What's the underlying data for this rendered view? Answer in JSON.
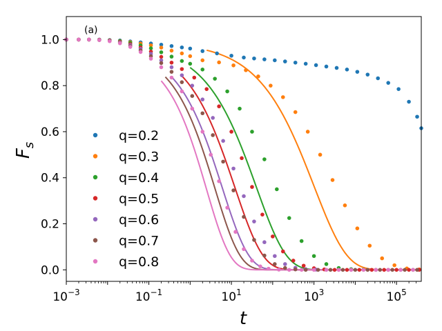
{
  "chart_data": {
    "type": "scatter",
    "title": "",
    "panel_label": "(a)",
    "xlabel": "t",
    "ylabel_main": "F",
    "ylabel_sub": "s",
    "xscale": "log",
    "xlim_log10": [
      -3,
      5.6
    ],
    "ylim": [
      -0.05,
      1.1
    ],
    "x_ticks": [
      {
        "base": "10",
        "exp": "−3",
        "log10": -3
      },
      {
        "base": "10",
        "exp": "−1",
        "log10": -1
      },
      {
        "base": "10",
        "exp": "1",
        "log10": 1
      },
      {
        "base": "10",
        "exp": "3",
        "log10": 3
      },
      {
        "base": "10",
        "exp": "5",
        "log10": 5
      }
    ],
    "y_ticks": [
      {
        "label": "0.0",
        "value": 0.0
      },
      {
        "label": "0.2",
        "value": 0.2
      },
      {
        "label": "0.4",
        "value": 0.4
      },
      {
        "label": "0.6",
        "value": 0.6
      },
      {
        "label": "0.8",
        "value": 0.8
      },
      {
        "label": "1.0",
        "value": 1.0
      }
    ],
    "legend_position": "center-left",
    "series": [
      {
        "name": "q=0.2",
        "color": "#1f77b4",
        "fit": false,
        "points": [
          [
            -3,
            1.0
          ],
          [
            -2.7,
            1.0
          ],
          [
            -2.45,
            1.0
          ],
          [
            -2.2,
            1.0
          ],
          [
            -1.95,
            0.998
          ],
          [
            -1.7,
            0.996
          ],
          [
            -1.45,
            0.992
          ],
          [
            -1.2,
            0.988
          ],
          [
            -0.95,
            0.983
          ],
          [
            -0.7,
            0.978
          ],
          [
            -0.45,
            0.972
          ],
          [
            -0.2,
            0.966
          ],
          [
            0.0,
            0.961
          ],
          [
            0.3,
            0.95
          ],
          [
            0.65,
            0.94
          ],
          [
            1.0,
            0.93
          ],
          [
            1.3,
            0.922
          ],
          [
            1.55,
            0.918
          ],
          [
            1.8,
            0.914
          ],
          [
            2.05,
            0.91
          ],
          [
            2.3,
            0.905
          ],
          [
            2.55,
            0.9
          ],
          [
            2.8,
            0.895
          ],
          [
            3.05,
            0.889
          ],
          [
            3.3,
            0.883
          ],
          [
            3.55,
            0.877
          ],
          [
            3.8,
            0.87
          ],
          [
            4.05,
            0.86
          ],
          [
            4.3,
            0.848
          ],
          [
            4.55,
            0.832
          ],
          [
            4.8,
            0.812
          ],
          [
            5.05,
            0.785
          ],
          [
            5.3,
            0.73
          ],
          [
            5.5,
            0.665
          ],
          [
            5.6,
            0.615
          ]
        ]
      },
      {
        "name": "q=0.3",
        "color": "#ff7f0e",
        "fit": true,
        "fit_start": 0.4,
        "fit_tau": 1000,
        "fit_beta": 0.55,
        "fit_A": 0.99,
        "points": [
          [
            -3,
            1.0
          ],
          [
            -2.7,
            1.0
          ],
          [
            -2.45,
            1.0
          ],
          [
            -2.2,
            0.999
          ],
          [
            -1.95,
            0.997
          ],
          [
            -1.7,
            0.994
          ],
          [
            -1.45,
            0.989
          ],
          [
            -1.2,
            0.983
          ],
          [
            -0.95,
            0.975
          ],
          [
            -0.7,
            0.965
          ],
          [
            -0.45,
            0.952
          ],
          [
            -0.2,
            0.94
          ],
          [
            0.0,
            0.928
          ],
          [
            0.3,
            0.91
          ],
          [
            0.7,
            0.901
          ],
          [
            1.05,
            0.888
          ],
          [
            1.35,
            0.867
          ],
          [
            1.65,
            0.84
          ],
          [
            1.95,
            0.8
          ],
          [
            2.25,
            0.75
          ],
          [
            2.55,
            0.685
          ],
          [
            2.85,
            0.6
          ],
          [
            3.15,
            0.5
          ],
          [
            3.45,
            0.39
          ],
          [
            3.75,
            0.28
          ],
          [
            4.05,
            0.18
          ],
          [
            4.35,
            0.105
          ],
          [
            4.65,
            0.05
          ],
          [
            4.95,
            0.02
          ],
          [
            5.25,
            0.006
          ],
          [
            5.55,
            0.002
          ]
        ]
      },
      {
        "name": "q=0.4",
        "color": "#2ca02c",
        "fit": true,
        "fit_start": 0.0,
        "fit_tau": 40,
        "fit_beta": 0.6,
        "fit_A": 0.98,
        "points": [
          [
            -3,
            1.0
          ],
          [
            -2.7,
            1.0
          ],
          [
            -2.45,
            1.0
          ],
          [
            -2.2,
            0.999
          ],
          [
            -1.95,
            0.997
          ],
          [
            -1.7,
            0.993
          ],
          [
            -1.45,
            0.986
          ],
          [
            -1.2,
            0.975
          ],
          [
            -0.95,
            0.962
          ],
          [
            -0.7,
            0.945
          ],
          [
            -0.45,
            0.926
          ],
          [
            -0.2,
            0.907
          ],
          [
            0.0,
            0.895
          ],
          [
            0.3,
            0.87
          ],
          [
            0.6,
            0.83
          ],
          [
            0.9,
            0.775
          ],
          [
            1.2,
            0.7
          ],
          [
            1.5,
            0.6
          ],
          [
            1.8,
            0.48
          ],
          [
            2.1,
            0.35
          ],
          [
            2.4,
            0.225
          ],
          [
            2.7,
            0.125
          ],
          [
            3.0,
            0.06
          ],
          [
            3.3,
            0.025
          ],
          [
            3.6,
            0.008
          ],
          [
            3.9,
            0.003
          ],
          [
            4.2,
            0.001
          ],
          [
            4.5,
            0.0
          ],
          [
            4.8,
            0.0
          ],
          [
            5.1,
            0.0
          ],
          [
            5.4,
            0.0
          ]
        ]
      },
      {
        "name": "q=0.5",
        "color": "#d62728",
        "fit": true,
        "fit_start": -0.2,
        "fit_tau": 12,
        "fit_beta": 0.64,
        "fit_A": 0.98,
        "points": [
          [
            -3,
            1.0
          ],
          [
            -2.7,
            1.0
          ],
          [
            -2.45,
            1.0
          ],
          [
            -2.2,
            0.999
          ],
          [
            -1.95,
            0.996
          ],
          [
            -1.7,
            0.99
          ],
          [
            -1.45,
            0.98
          ],
          [
            -1.2,
            0.966
          ],
          [
            -0.95,
            0.948
          ],
          [
            -0.7,
            0.925
          ],
          [
            -0.45,
            0.9
          ],
          [
            -0.2,
            0.872
          ],
          [
            0.1,
            0.835
          ],
          [
            0.4,
            0.785
          ],
          [
            0.7,
            0.71
          ],
          [
            1.0,
            0.6
          ],
          [
            1.25,
            0.485
          ],
          [
            1.5,
            0.36
          ],
          [
            1.75,
            0.24
          ],
          [
            2.0,
            0.145
          ],
          [
            2.25,
            0.08
          ],
          [
            2.5,
            0.04
          ],
          [
            2.75,
            0.018
          ],
          [
            3.0,
            0.007
          ],
          [
            3.25,
            0.002
          ],
          [
            3.5,
            0.0
          ],
          [
            3.8,
            0.0
          ],
          [
            4.1,
            0.0
          ],
          [
            4.4,
            0.0
          ],
          [
            4.7,
            0.0
          ],
          [
            5.0,
            0.0
          ],
          [
            5.3,
            0.0
          ],
          [
            5.55,
            0.0
          ]
        ]
      },
      {
        "name": "q=0.6",
        "color": "#9467bd",
        "fit": true,
        "fit_start": -0.45,
        "fit_tau": 6,
        "fit_beta": 0.68,
        "fit_A": 0.97,
        "points": [
          [
            -3,
            1.0
          ],
          [
            -2.7,
            1.0
          ],
          [
            -2.45,
            1.0
          ],
          [
            -2.2,
            0.998
          ],
          [
            -1.95,
            0.995
          ],
          [
            -1.7,
            0.988
          ],
          [
            -1.45,
            0.976
          ],
          [
            -1.2,
            0.96
          ],
          [
            -0.95,
            0.938
          ],
          [
            -0.7,
            0.91
          ],
          [
            -0.45,
            0.88
          ],
          [
            -0.2,
            0.845
          ],
          [
            0.05,
            0.8
          ],
          [
            0.3,
            0.74
          ],
          [
            0.55,
            0.66
          ],
          [
            0.8,
            0.56
          ],
          [
            1.05,
            0.44
          ],
          [
            1.3,
            0.32
          ],
          [
            1.55,
            0.21
          ],
          [
            1.8,
            0.12
          ],
          [
            2.05,
            0.06
          ],
          [
            2.3,
            0.025
          ],
          [
            2.55,
            0.009
          ],
          [
            2.8,
            0.003
          ],
          [
            3.05,
            0.001
          ],
          [
            3.3,
            0.0
          ],
          [
            3.6,
            0.0
          ],
          [
            3.9,
            0.0
          ],
          [
            4.2,
            0.0
          ],
          [
            4.5,
            0.0
          ],
          [
            4.8,
            0.0
          ],
          [
            5.1,
            0.0
          ],
          [
            5.4,
            0.0
          ]
        ]
      },
      {
        "name": "q=0.7",
        "color": "#8c564b",
        "fit": true,
        "fit_start": -0.6,
        "fit_tau": 4,
        "fit_beta": 0.72,
        "fit_A": 0.96,
        "points": [
          [
            -3,
            1.0
          ],
          [
            -2.7,
            1.0
          ],
          [
            -2.45,
            1.0
          ],
          [
            -2.2,
            0.998
          ],
          [
            -1.95,
            0.994
          ],
          [
            -1.7,
            0.986
          ],
          [
            -1.45,
            0.972
          ],
          [
            -1.2,
            0.953
          ],
          [
            -0.95,
            0.928
          ],
          [
            -0.7,
            0.898
          ],
          [
            -0.45,
            0.86
          ],
          [
            -0.2,
            0.815
          ],
          [
            0.05,
            0.755
          ],
          [
            0.3,
            0.68
          ],
          [
            0.55,
            0.585
          ],
          [
            0.8,
            0.47
          ],
          [
            1.05,
            0.345
          ],
          [
            1.3,
            0.23
          ],
          [
            1.55,
            0.13
          ],
          [
            1.8,
            0.062
          ],
          [
            2.05,
            0.025
          ],
          [
            2.3,
            0.008
          ],
          [
            2.55,
            0.002
          ],
          [
            2.8,
            0.0
          ],
          [
            3.1,
            0.0
          ],
          [
            3.4,
            0.0
          ],
          [
            3.7,
            0.0
          ],
          [
            4.0,
            0.0
          ],
          [
            4.3,
            0.0
          ],
          [
            4.6,
            0.0
          ],
          [
            4.9,
            0.0
          ],
          [
            5.2,
            0.0
          ],
          [
            5.5,
            0.0
          ]
        ]
      },
      {
        "name": "q=0.8",
        "color": "#e377c2",
        "fit": true,
        "fit_start": -0.7,
        "fit_tau": 2.5,
        "fit_beta": 0.76,
        "fit_A": 0.95,
        "points": [
          [
            -3,
            1.0
          ],
          [
            -2.7,
            1.0
          ],
          [
            -2.45,
            1.0
          ],
          [
            -2.2,
            0.998
          ],
          [
            -1.95,
            0.993
          ],
          [
            -1.7,
            0.984
          ],
          [
            -1.45,
            0.968
          ],
          [
            -1.2,
            0.946
          ],
          [
            -0.95,
            0.917
          ],
          [
            -0.7,
            0.88
          ],
          [
            -0.45,
            0.835
          ],
          [
            -0.2,
            0.775
          ],
          [
            0.05,
            0.7
          ],
          [
            0.3,
            0.6
          ],
          [
            0.5,
            0.5
          ],
          [
            0.7,
            0.385
          ],
          [
            0.9,
            0.27
          ],
          [
            1.1,
            0.165
          ],
          [
            1.3,
            0.09
          ],
          [
            1.5,
            0.04
          ],
          [
            1.7,
            0.015
          ],
          [
            1.9,
            0.005
          ],
          [
            2.15,
            0.001
          ],
          [
            2.4,
            0.0
          ],
          [
            2.7,
            0.0
          ],
          [
            3.0,
            0.0
          ],
          [
            3.3,
            0.0
          ],
          [
            3.6,
            0.0
          ],
          [
            3.9,
            0.0
          ],
          [
            4.2,
            0.0
          ],
          [
            4.5,
            0.0
          ],
          [
            4.8,
            0.0
          ],
          [
            5.1,
            0.0
          ],
          [
            5.4,
            0.0
          ]
        ]
      }
    ]
  }
}
